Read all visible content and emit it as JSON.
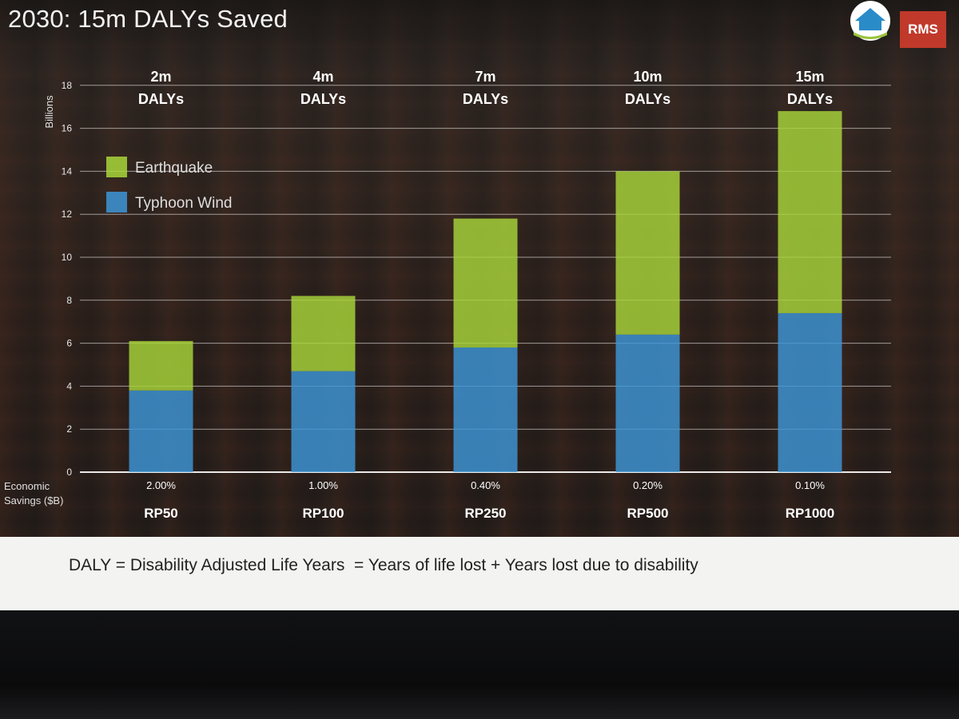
{
  "slide": {
    "title": "2030: 15m DALYs Saved",
    "logo_text": "RMS",
    "footer": "DALY = Disability Adjusted Life Years  = Years of life lost + Years lost due to disability"
  },
  "chart_data": {
    "type": "bar",
    "stacked": true,
    "categories": [
      "RP50",
      "RP100",
      "RP250",
      "RP500",
      "RP1000"
    ],
    "series": [
      {
        "name": "Typhoon Wind",
        "color": "#3d96d8",
        "values": [
          3.8,
          4.7,
          5.8,
          6.4,
          7.4
        ]
      },
      {
        "name": "Earthquake",
        "color": "#a8d63a",
        "values": [
          2.3,
          3.5,
          6.0,
          7.6,
          9.4
        ]
      }
    ],
    "top_labels": [
      [
        "2m",
        "DALYs"
      ],
      [
        "4m",
        "DALYs"
      ],
      [
        "7m",
        "DALYs"
      ],
      [
        "10m",
        "DALYs"
      ],
      [
        "15m",
        "DALYs"
      ]
    ],
    "savings_labels": [
      "2.00%",
      "1.00%",
      "0.40%",
      "0.20%",
      "0.10%"
    ],
    "yaxis_title": "Billions",
    "yticks": [
      0,
      2,
      4,
      6,
      8,
      10,
      12,
      14,
      16,
      18
    ],
    "ylim": [
      0,
      18
    ],
    "xaxis_label": [
      "Economic",
      "Savings ($B)"
    ],
    "grid": true,
    "legend_position": "top-left"
  }
}
